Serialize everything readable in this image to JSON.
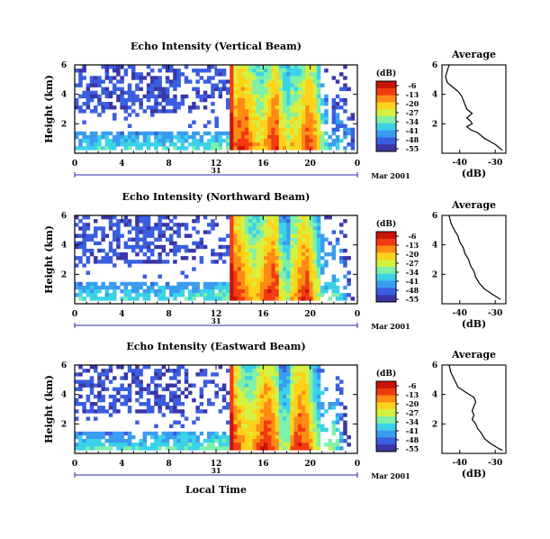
{
  "colors": {
    "scale": [
      "#3a36a8",
      "#3a5ee0",
      "#3a9cf0",
      "#3ad2e8",
      "#7ef0a8",
      "#d6f040",
      "#ffd21a",
      "#ff8a14",
      "#f23a10",
      "#c8120a"
    ],
    "axis": "#000000",
    "date_line": "#2a2aa8"
  },
  "chart_data": [
    {
      "type": "heatmap",
      "title": "Echo Intensity (Vertical Beam)",
      "ylabel": "Height (km)",
      "x_ticks": [
        "0",
        "4",
        "8",
        "12",
        "16",
        "20",
        "0"
      ],
      "y_ticks": [
        "6",
        "4",
        "2"
      ],
      "xlim": [
        0,
        24
      ],
      "ylim": [
        0,
        6
      ],
      "date_day": "31",
      "date_month": "Mar 2001",
      "colorbar": {
        "unit": "(dB)",
        "labels": [
          "-6",
          "-13",
          "-20",
          "-27",
          "-34",
          "-41",
          "-48",
          "-55"
        ]
      },
      "dense_start_hour": 13,
      "profile": {
        "title": "Average",
        "xlabel": "(dB)",
        "x_ticks": [
          "-40",
          "-30"
        ],
        "y_ticks": [
          "6",
          "4",
          "2"
        ],
        "xlim": [
          -45,
          -27
        ],
        "points": [
          [
            6,
            -43
          ],
          [
            5.6,
            -43.5
          ],
          [
            5.2,
            -44
          ],
          [
            4.8,
            -43.5
          ],
          [
            4.5,
            -42
          ],
          [
            4.2,
            -40.5
          ],
          [
            3.9,
            -39.5
          ],
          [
            3.6,
            -39
          ],
          [
            3.3,
            -38.5
          ],
          [
            3,
            -38
          ],
          [
            2.7,
            -36.5
          ],
          [
            2.4,
            -38
          ],
          [
            2.2,
            -37
          ],
          [
            2,
            -36.5
          ],
          [
            1.8,
            -38
          ],
          [
            1.6,
            -37
          ],
          [
            1.4,
            -35
          ],
          [
            1.2,
            -34
          ],
          [
            1,
            -33
          ],
          [
            0.8,
            -31.5
          ],
          [
            0.6,
            -30
          ],
          [
            0.4,
            -29
          ],
          [
            0.2,
            -28
          ]
        ]
      }
    },
    {
      "type": "heatmap",
      "title": "Echo Intensity (Northward Beam)",
      "ylabel": "Height (km)",
      "x_ticks": [
        "0",
        "4",
        "8",
        "12",
        "16",
        "20",
        "0"
      ],
      "y_ticks": [
        "6",
        "4",
        "2"
      ],
      "xlim": [
        0,
        24
      ],
      "ylim": [
        0,
        6
      ],
      "date_day": "31",
      "date_month": "Mar 2001",
      "colorbar": {
        "unit": "(dB)",
        "labels": [
          "-6",
          "-13",
          "-20",
          "-27",
          "-34",
          "-41",
          "-48",
          "-55"
        ]
      },
      "dense_start_hour": 13,
      "profile": {
        "title": "Average",
        "xlabel": "(dB)",
        "x_ticks": [
          "-40",
          "-30"
        ],
        "y_ticks": [
          "6",
          "4",
          "2"
        ],
        "xlim": [
          -45,
          -27
        ],
        "points": [
          [
            6,
            -43
          ],
          [
            5.5,
            -42.5
          ],
          [
            5,
            -41.5
          ],
          [
            4.6,
            -40.5
          ],
          [
            4.2,
            -40
          ],
          [
            3.8,
            -39
          ],
          [
            3.4,
            -38.5
          ],
          [
            3,
            -37.5
          ],
          [
            2.6,
            -37
          ],
          [
            2.2,
            -36
          ],
          [
            1.8,
            -35.5
          ],
          [
            1.4,
            -34.5
          ],
          [
            1,
            -33
          ],
          [
            0.6,
            -30.5
          ],
          [
            0.3,
            -28.5
          ]
        ]
      }
    },
    {
      "type": "heatmap",
      "title": "Echo Intensity (Eastward Beam)",
      "ylabel": "Height (km)",
      "xlabel": "Local Time",
      "x_ticks": [
        "0",
        "4",
        "8",
        "12",
        "16",
        "20",
        "0"
      ],
      "y_ticks": [
        "6",
        "4",
        "2"
      ],
      "xlim": [
        0,
        24
      ],
      "ylim": [
        0,
        6
      ],
      "date_day": "31",
      "date_month": "Mar 2001",
      "colorbar": {
        "unit": "(dB)",
        "labels": [
          "-6",
          "-13",
          "-20",
          "-27",
          "-34",
          "-41",
          "-48",
          "-55"
        ]
      },
      "dense_start_hour": 13,
      "profile": {
        "title": "Average",
        "xlabel": "(dB)",
        "x_ticks": [
          "-40",
          "-30"
        ],
        "y_ticks": [
          "6",
          "4",
          "2"
        ],
        "xlim": [
          -45,
          -27
        ],
        "points": [
          [
            6,
            -43
          ],
          [
            5.5,
            -42.5
          ],
          [
            5,
            -41.5
          ],
          [
            4.5,
            -40.5
          ],
          [
            4.1,
            -38
          ],
          [
            3.8,
            -36
          ],
          [
            3.5,
            -35.5
          ],
          [
            3.2,
            -36
          ],
          [
            2.9,
            -36.5
          ],
          [
            2.6,
            -36
          ],
          [
            2.3,
            -36.5
          ],
          [
            2,
            -35.5
          ],
          [
            1.7,
            -35
          ],
          [
            1.4,
            -34
          ],
          [
            1,
            -33
          ],
          [
            0.7,
            -31.5
          ],
          [
            0.4,
            -29.5
          ],
          [
            0.2,
            -28
          ]
        ]
      }
    }
  ]
}
